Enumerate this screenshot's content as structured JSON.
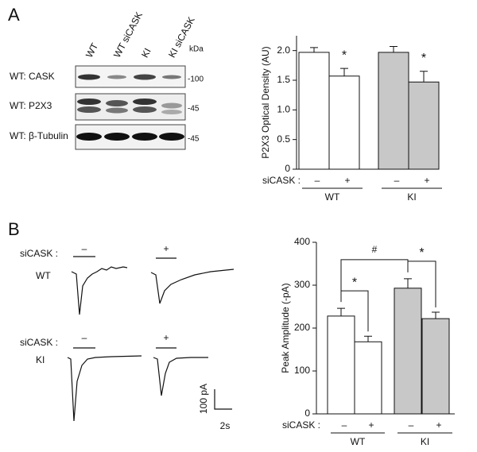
{
  "panel_a": {
    "label": "A",
    "lanes": [
      "WT",
      "WT siCASK",
      "KI",
      "KI siCASK"
    ],
    "kda": "kDa",
    "blots": [
      {
        "label": "WT: CASK",
        "marker": "-100"
      },
      {
        "label": "WT:  P2X3",
        "marker": "-45"
      },
      {
        "label": "WT: β-Tubulin",
        "marker": "-45"
      }
    ]
  },
  "panel_b": {
    "label": "B",
    "rows": [
      {
        "condition_label": "siCASK :",
        "conditions": [
          "–",
          "+"
        ],
        "genotype": "WT"
      },
      {
        "condition_label": "siCASK :",
        "conditions": [
          "–",
          "+"
        ],
        "genotype": "KI"
      }
    ],
    "scale": {
      "y": "100 pA",
      "x": "2s"
    }
  },
  "chart_data": [
    {
      "type": "bar",
      "y_label": "P2X3 Optical Density (AU)",
      "x_label": "siCASK :",
      "categories": [
        "–",
        "+",
        "–",
        "+"
      ],
      "groups": [
        "WT",
        "KI"
      ],
      "values": [
        1.97,
        1.57,
        1.97,
        1.47
      ],
      "errors": [
        0.08,
        0.13,
        0.1,
        0.18
      ],
      "colors": [
        "#ffffff",
        "#ffffff",
        "#c8c8c8",
        "#c8c8c8"
      ],
      "annotations": [
        "*",
        "*"
      ],
      "ylim": [
        0,
        2.25
      ],
      "yticks": [
        0,
        0.5,
        {
          "value": 1,
          "label": "1.0"
        },
        1.5,
        {
          "value": 2,
          "label": "2.0"
        }
      ]
    },
    {
      "type": "bar",
      "y_label": "Peak Amplitude (-pA)",
      "x_label": "siCASK :",
      "categories": [
        "–",
        "+",
        "–",
        "+"
      ],
      "groups": [
        "WT",
        "KI"
      ],
      "values": [
        228,
        168,
        293,
        222
      ],
      "errors": [
        18,
        13,
        22,
        15
      ],
      "colors": [
        "#ffffff",
        "#ffffff",
        "#c8c8c8",
        "#c8c8c8"
      ],
      "annotations": [
        "#",
        "*",
        "*"
      ],
      "ylim": [
        0,
        400
      ],
      "yticks": [
        0,
        100,
        200,
        300,
        400
      ]
    }
  ]
}
